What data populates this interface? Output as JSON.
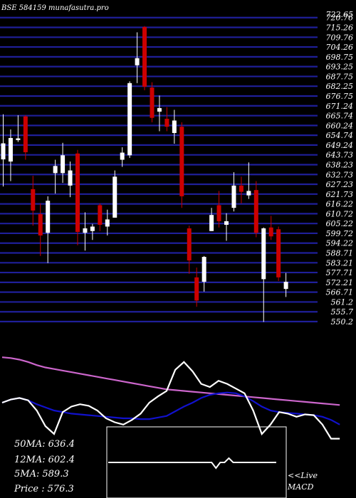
{
  "chart_data": {
    "type": "candlestick",
    "title": "BSE 584159 munafasutra.pro",
    "ylim": [
      550.2,
      722.65
    ],
    "y_ticks": [
      "722.65",
      "720.76",
      "715.26",
      "709.76",
      "704.26",
      "698.75",
      "693.25",
      "687.75",
      "682.25",
      "676.75",
      "671.24",
      "665.74",
      "660.24",
      "654.74",
      "649.24",
      "643.73",
      "638.23",
      "632.73",
      "627.23",
      "621.73",
      "616.22",
      "610.72",
      "605.22",
      "599.72",
      "594.22",
      "588.71",
      "583.21",
      "577.71",
      "572.21",
      "566.71",
      "561.2",
      "555.7",
      "550.2"
    ],
    "candles": [
      {
        "o": 650.2,
        "h": 666.5,
        "l": 626.0,
        "c": 641.2,
        "dir": "up"
      },
      {
        "o": 653.2,
        "h": 658.0,
        "l": 629.0,
        "c": 640.0,
        "dir": "up"
      },
      {
        "o": 653.0,
        "h": 666.0,
        "l": 651.0,
        "c": 652.0,
        "dir": "up"
      },
      {
        "o": 665.3,
        "h": 666.0,
        "l": 641.0,
        "c": 645.2,
        "dir": "down"
      },
      {
        "o": 624.5,
        "h": 632.0,
        "l": 604.0,
        "c": 612.5,
        "dir": "down"
      },
      {
        "o": 610.5,
        "h": 616.5,
        "l": 587.0,
        "c": 598.5,
        "dir": "down"
      },
      {
        "o": 600.0,
        "h": 620.5,
        "l": 583.0,
        "c": 618.0,
        "dir": "up"
      },
      {
        "o": 633.5,
        "h": 641.0,
        "l": 622.0,
        "c": 637.5,
        "dir": "up"
      },
      {
        "o": 633.5,
        "h": 650.5,
        "l": 628.0,
        "c": 643.5,
        "dir": "up"
      },
      {
        "o": 626.5,
        "h": 640.0,
        "l": 620.0,
        "c": 635.0,
        "dir": "up"
      },
      {
        "o": 644.5,
        "h": 646.5,
        "l": 593.0,
        "c": 600.5,
        "dir": "down"
      },
      {
        "o": 600.0,
        "h": 611.5,
        "l": 590.0,
        "c": 602.5,
        "dir": "up"
      },
      {
        "o": 601.0,
        "h": 605.0,
        "l": 596.0,
        "c": 603.5,
        "dir": "up"
      },
      {
        "o": 615.5,
        "h": 616.5,
        "l": 601.0,
        "c": 604.5,
        "dir": "down"
      },
      {
        "o": 603.5,
        "h": 613.0,
        "l": 598.5,
        "c": 607.5,
        "dir": "up"
      },
      {
        "o": 608.5,
        "h": 635.0,
        "l": 608.5,
        "c": 631.5,
        "dir": "up"
      },
      {
        "o": 641.0,
        "h": 648.0,
        "l": 637.0,
        "c": 645.0,
        "dir": "up"
      },
      {
        "o": 643.5,
        "h": 685.0,
        "l": 642.0,
        "c": 684.0,
        "dir": "up"
      },
      {
        "o": 694.0,
        "h": 712.5,
        "l": 684.0,
        "c": 698.0,
        "dir": "up"
      },
      {
        "o": 715.5,
        "h": 716.0,
        "l": 680.0,
        "c": 682.0,
        "dir": "down"
      },
      {
        "o": 681.5,
        "h": 684.5,
        "l": 662.0,
        "c": 664.5,
        "dir": "down"
      },
      {
        "o": 670.0,
        "h": 677.0,
        "l": 657.0,
        "c": 668.0,
        "dir": "up"
      },
      {
        "o": 664.0,
        "h": 670.5,
        "l": 657.0,
        "c": 659.5,
        "dir": "down"
      },
      {
        "o": 656.0,
        "h": 669.0,
        "l": 650.0,
        "c": 663.0,
        "dir": "up"
      },
      {
        "o": 659.5,
        "h": 662.0,
        "l": 614.0,
        "c": 620.5,
        "dir": "down"
      },
      {
        "o": 602.5,
        "h": 604.0,
        "l": 577.0,
        "c": 584.5,
        "dir": "down"
      },
      {
        "o": 575.0,
        "h": 580.5,
        "l": 558.5,
        "c": 562.0,
        "dir": "down"
      },
      {
        "o": 572.5,
        "h": 587.0,
        "l": 567.0,
        "c": 586.5,
        "dir": "up"
      },
      {
        "o": 601.0,
        "h": 614.0,
        "l": 601.0,
        "c": 610.0,
        "dir": "up"
      },
      {
        "o": 615.5,
        "h": 623.5,
        "l": 603.0,
        "c": 606.5,
        "dir": "down"
      },
      {
        "o": 606.5,
        "h": 611.0,
        "l": 595.5,
        "c": 604.5,
        "dir": "up"
      },
      {
        "o": 614.0,
        "h": 634.0,
        "l": 612.0,
        "c": 626.5,
        "dir": "up"
      },
      {
        "o": 626.5,
        "h": 631.5,
        "l": 616.5,
        "c": 623.0,
        "dir": "down"
      },
      {
        "o": 621.0,
        "h": 639.5,
        "l": 619.0,
        "c": 623.5,
        "dir": "up"
      },
      {
        "o": 624.0,
        "h": 629.0,
        "l": 597.5,
        "c": 600.0,
        "dir": "down"
      },
      {
        "o": 574.0,
        "h": 603.0,
        "l": 550.0,
        "c": 602.5,
        "dir": "up"
      },
      {
        "o": 603.0,
        "h": 609.5,
        "l": 596.0,
        "c": 598.0,
        "dir": "down"
      },
      {
        "o": 602.0,
        "h": 603.5,
        "l": 573.0,
        "c": 575.0,
        "dir": "down"
      },
      {
        "o": 568.5,
        "h": 577.5,
        "l": 564.0,
        "c": 572.5,
        "dir": "up"
      }
    ],
    "lower_panel": {
      "ma_series": [
        {
          "color": "#cc66cc",
          "values": [
            98,
            97,
            95,
            92,
            88,
            85,
            83,
            81,
            79,
            77,
            75,
            73,
            71,
            69,
            67,
            65,
            63,
            61,
            59,
            57,
            56,
            55,
            54,
            53,
            52,
            51,
            50,
            49,
            48,
            47,
            46,
            45,
            44,
            43,
            42,
            41,
            40,
            39,
            38,
            37
          ]
        },
        {
          "color": "#1111cc",
          "values": [
            40,
            44,
            46,
            43,
            38,
            34,
            30,
            28,
            26,
            25,
            24,
            23,
            22,
            21,
            20,
            20,
            19,
            19,
            21,
            23,
            29,
            35,
            40,
            46,
            50,
            52,
            53,
            52,
            48,
            42,
            35,
            30,
            28,
            27,
            26,
            25,
            24,
            22,
            18,
            12
          ]
        },
        {
          "color": "#ffffff",
          "values": [
            40,
            44,
            46,
            43,
            30,
            10,
            0,
            28,
            35,
            38,
            36,
            30,
            20,
            15,
            12,
            18,
            26,
            40,
            48,
            55,
            82,
            92,
            80,
            64,
            60,
            68,
            64,
            58,
            52,
            30,
            0,
            12,
            28,
            26,
            22,
            25,
            24,
            12,
            -6,
            -6
          ]
        }
      ],
      "macd_series": {
        "color": "#ffffff",
        "values": [
          0,
          0,
          0,
          0,
          0,
          0,
          0,
          0,
          0,
          0,
          0,
          0,
          0,
          0,
          0,
          0,
          0,
          0,
          0,
          0,
          0,
          0,
          0,
          0,
          0,
          -8,
          0,
          0,
          6,
          0,
          0,
          0,
          0,
          0,
          0,
          0,
          0,
          0,
          0,
          0
        ]
      }
    }
  },
  "stats": [
    {
      "label": "50MA",
      "sep": ":",
      "value": "636.4"
    },
    {
      "label": "12MA",
      "sep": ":",
      "value": "602.4"
    },
    {
      "label": "5MA",
      "sep": ":",
      "value": "589.3"
    },
    {
      "label": "Price",
      "sep": " :",
      "value": "576.3"
    }
  ],
  "macd_label": {
    "line1": "<<Live",
    "line2": "MACD"
  },
  "colors": {
    "up": "#ffffff",
    "down": "#cc0000",
    "grid": "#1f1f99",
    "background": "#000000"
  }
}
